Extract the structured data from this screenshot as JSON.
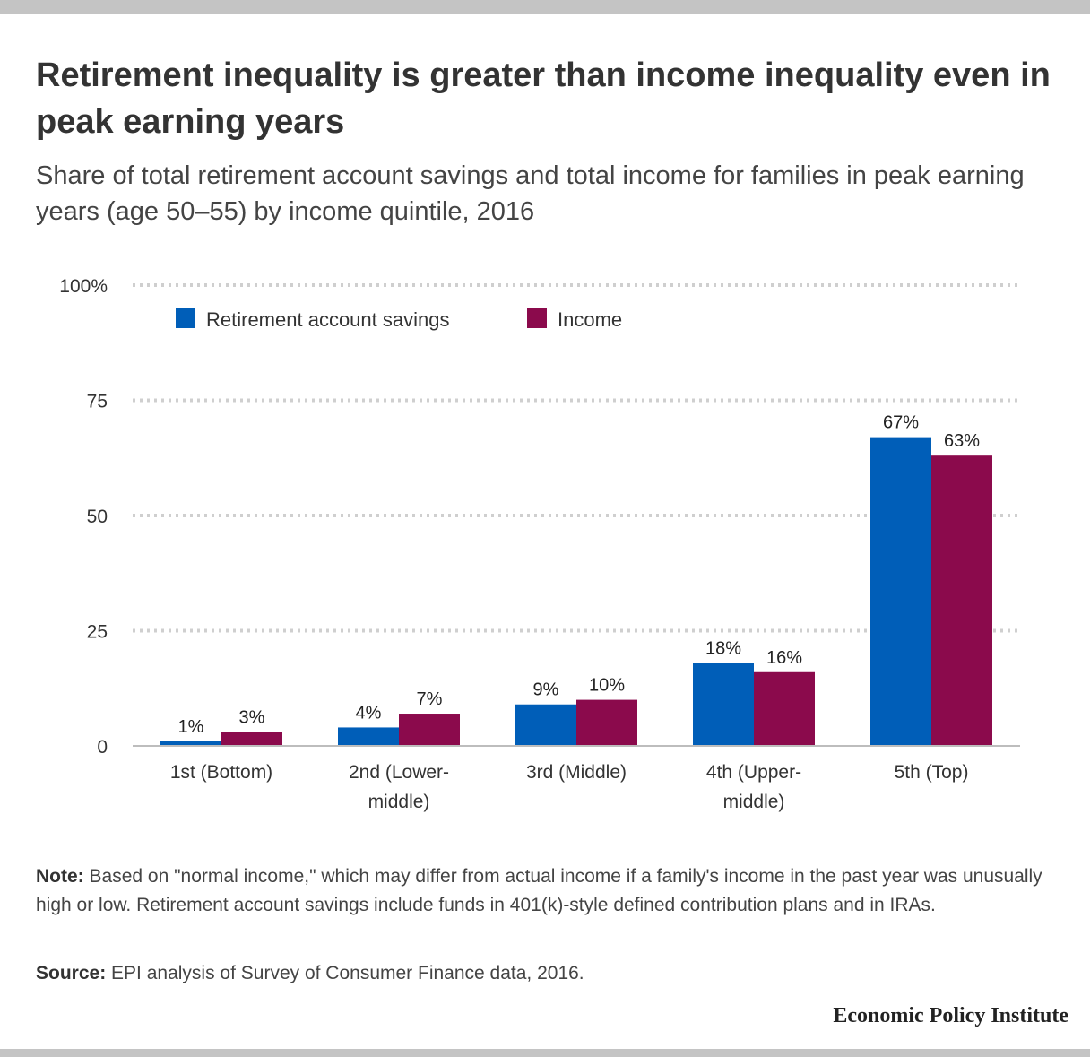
{
  "header": {
    "title": "Retirement inequality is greater than income inequality even in peak earning years",
    "subtitle": "Share of total retirement account savings and total income for families in peak earning years (age 50–55) by income quintile, 2016"
  },
  "footer": {
    "note_label": "Note:",
    "note_text": "Based on \"normal income,\" which may differ from actual income if a family's income in the past year was unusually high or low. Retirement account savings include funds in 401(k)-style defined contribution plans and in IRAs.",
    "source_label": "Source:",
    "source_text": "EPI analysis of Survey of Consumer Finance data, 2016.",
    "brand": "Economic Policy Institute"
  },
  "chart_data": {
    "type": "bar",
    "categories": [
      "1st (Bottom)",
      "2nd (Lower-middle)",
      "3rd (Middle)",
      "4th (Upper-middle)",
      "5th (Top)"
    ],
    "category_lines": [
      [
        "1st (Bottom)"
      ],
      [
        "2nd (Lower-",
        "middle)"
      ],
      [
        "3rd (Middle)"
      ],
      [
        "4th (Upper-",
        "middle)"
      ],
      [
        "5th (Top)"
      ]
    ],
    "series": [
      {
        "name": "Retirement account savings",
        "values": [
          1,
          4,
          9,
          18,
          67
        ],
        "labels": [
          "1%",
          "4%",
          "9%",
          "18%",
          "67%"
        ],
        "color": "#005eb8"
      },
      {
        "name": "Income",
        "values": [
          3,
          7,
          10,
          16,
          63
        ],
        "labels": [
          "3%",
          "7%",
          "10%",
          "16%",
          "63%"
        ],
        "color": "#8b0a4c"
      }
    ],
    "ylim": [
      0,
      100
    ],
    "yticks": [
      0,
      25,
      50,
      75,
      100
    ],
    "ytick_labels": [
      "0",
      "25",
      "50",
      "75",
      "100%"
    ],
    "grid": true,
    "gridline_style": "dotted",
    "legend_position": "top-left"
  }
}
